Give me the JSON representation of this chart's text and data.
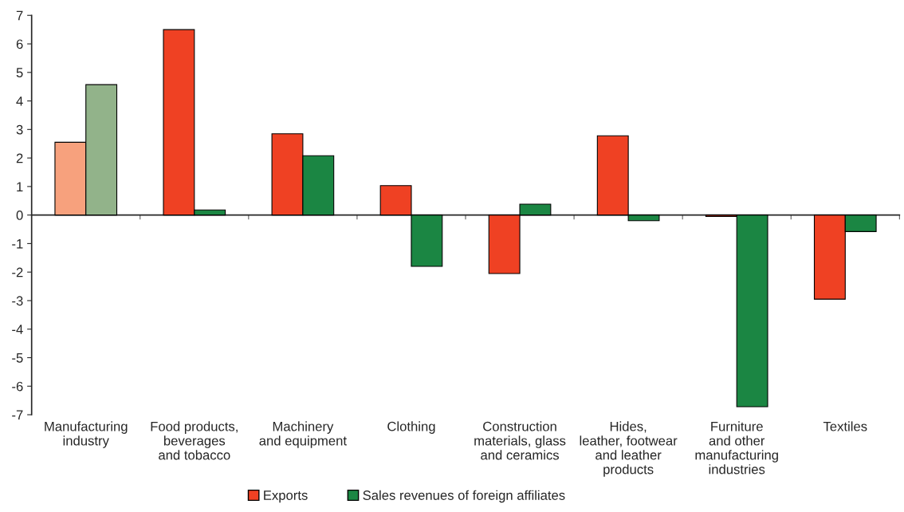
{
  "chart_data": {
    "type": "bar",
    "categories": [
      "Manufacturing\nindustry",
      "Food products,\nbeverages\nand tobacco",
      "Machinery\nand equipment",
      "Clothing",
      "Construction\nmaterials, glass\nand ceramics",
      "Hides,\nleather, footwear\nand leather\nproducts",
      "Furniture\nand other\nmanufacturing\nindustries",
      "Textiles"
    ],
    "series": [
      {
        "name": "Exports",
        "color": "#ef4123",
        "colors": [
          "#f7a17d",
          "#ef4123",
          "#ef4123",
          "#ef4123",
          "#ef4123",
          "#ef4123",
          "#ef4123",
          "#ef4123"
        ],
        "values": [
          2.55,
          6.5,
          2.85,
          1.03,
          -2.05,
          2.78,
          -0.05,
          -2.95
        ]
      },
      {
        "name": "Sales revenues of foreign affiliates",
        "color": "#1b8643",
        "colors": [
          "#92b38a",
          "#1b8643",
          "#1b8643",
          "#1b8643",
          "#1b8643",
          "#1b8643",
          "#1b8643",
          "#1b8643"
        ],
        "values": [
          4.57,
          0.18,
          2.08,
          -1.8,
          0.38,
          -0.2,
          -6.72,
          -0.58
        ]
      }
    ],
    "ylim": [
      -7,
      7
    ],
    "yticks": [
      {
        "value": -7,
        "label": "-7"
      },
      {
        "value": -6,
        "label": "-6"
      },
      {
        "value": -5,
        "label": "-5"
      },
      {
        "value": -4,
        "label": "-4"
      },
      {
        "value": -3,
        "label": "-3"
      },
      {
        "value": -2,
        "label": "-2"
      },
      {
        "value": -1,
        "label": "-1"
      },
      0,
      1,
      2,
      3,
      4,
      5,
      6,
      7
    ],
    "legend": "bottom"
  }
}
